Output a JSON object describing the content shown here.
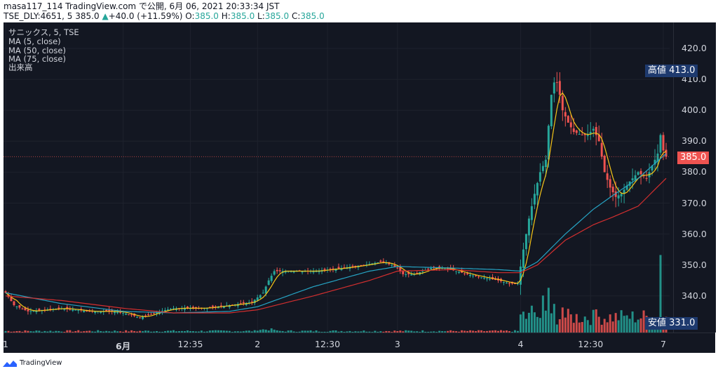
{
  "header": {
    "publisher_line": "masa117_114 TradingView.com で公開, 6月 06, 2021 20:33:34 JST",
    "symbol": "TSE_DLY:4651, 5",
    "last": "385.0",
    "change": "+40.0 (+11.59%)",
    "o_label": "O:",
    "o_value": "385.0",
    "h_label": "H:",
    "h_value": "385.0",
    "l_label": "L:",
    "l_value": "385.0",
    "c_label": "C:",
    "c_value": "385.0"
  },
  "legend": {
    "title": "サニックス, 5, TSE",
    "ma5": "MA (5, close)",
    "ma50": "MA (50, close)",
    "ma75": "MA (75, close)",
    "volume": "出来高"
  },
  "price_tags": {
    "high_label": "高値",
    "high_value": "413.0",
    "low_label": "安値",
    "low_value": "331.0",
    "current_value": "385.0"
  },
  "footer": {
    "brand": "TradingView"
  },
  "colors": {
    "up": "#26a69a",
    "down": "#ef5350",
    "ma5": "#f5c518",
    "ma50": "#26a4c4",
    "ma75": "#d32f2f",
    "background": "#131722",
    "grid": "#1e222d"
  },
  "chart_data": {
    "type": "candlestick",
    "interval": "5",
    "ylim": [
      331,
      425
    ],
    "y_ticks": [
      340,
      350,
      360,
      370,
      380,
      390,
      400,
      410,
      420
    ],
    "y_tick_labels": [
      "340.0",
      "350.0",
      "360.0",
      "370.0",
      "380.0",
      "390.0",
      "400.0",
      "410.0",
      "420.0"
    ],
    "x_ticks": [
      {
        "index": 0,
        "label": "1",
        "bold": false
      },
      {
        "index": 42,
        "label": "6月",
        "bold": true
      },
      {
        "index": 66,
        "label": "12:35",
        "bold": false
      },
      {
        "index": 90,
        "label": "2",
        "bold": false
      },
      {
        "index": 115,
        "label": "12:30",
        "bold": false
      },
      {
        "index": 140,
        "label": "3",
        "bold": false
      },
      {
        "index": 184,
        "label": "4",
        "bold": false
      },
      {
        "index": 209,
        "label": "12:30",
        "bold": false
      },
      {
        "index": 235,
        "label": "7",
        "bold": false
      }
    ],
    "price_keypoints": [
      [
        0,
        341
      ],
      [
        3,
        337
      ],
      [
        8,
        335
      ],
      [
        20,
        336
      ],
      [
        30,
        335
      ],
      [
        40,
        335
      ],
      [
        48,
        333
      ],
      [
        55,
        335
      ],
      [
        60,
        336
      ],
      [
        70,
        336
      ],
      [
        80,
        337
      ],
      [
        88,
        338
      ],
      [
        92,
        341
      ],
      [
        94,
        345
      ],
      [
        96,
        348
      ],
      [
        100,
        348
      ],
      [
        110,
        348
      ],
      [
        120,
        349
      ],
      [
        128,
        350
      ],
      [
        134,
        351
      ],
      [
        138,
        350
      ],
      [
        140,
        349
      ],
      [
        142,
        347
      ],
      [
        146,
        347
      ],
      [
        152,
        349
      ],
      [
        157,
        349
      ],
      [
        165,
        347
      ],
      [
        170,
        346
      ],
      [
        176,
        345
      ],
      [
        180,
        344
      ],
      [
        183,
        344
      ],
      [
        185,
        355
      ],
      [
        187,
        365
      ],
      [
        189,
        373
      ],
      [
        191,
        380
      ],
      [
        193,
        384
      ],
      [
        194,
        395
      ],
      [
        195,
        405
      ],
      [
        196,
        409
      ],
      [
        197,
        409
      ],
      [
        198,
        405
      ],
      [
        199,
        400
      ],
      [
        201,
        396
      ],
      [
        203,
        393
      ],
      [
        206,
        392
      ],
      [
        208,
        392
      ],
      [
        210,
        394
      ],
      [
        212,
        390
      ],
      [
        214,
        380
      ],
      [
        216,
        375
      ],
      [
        218,
        372
      ],
      [
        220,
        373
      ],
      [
        223,
        377
      ],
      [
        226,
        380
      ],
      [
        229,
        378
      ],
      [
        231,
        382
      ],
      [
        233,
        386
      ],
      [
        234,
        392
      ],
      [
        235,
        387
      ],
      [
        236,
        385
      ]
    ],
    "ma50_keypoints": [
      [
        0,
        341
      ],
      [
        20,
        337.5
      ],
      [
        42,
        335
      ],
      [
        60,
        334.5
      ],
      [
        80,
        335
      ],
      [
        90,
        336.5
      ],
      [
        110,
        343
      ],
      [
        130,
        348
      ],
      [
        140,
        349.5
      ],
      [
        160,
        349
      ],
      [
        176,
        348.5
      ],
      [
        184,
        348
      ],
      [
        190,
        351
      ],
      [
        200,
        360
      ],
      [
        210,
        368
      ],
      [
        217,
        372.5
      ],
      [
        226,
        378
      ],
      [
        236,
        386
      ]
    ],
    "ma75_keypoints": [
      [
        0,
        340
      ],
      [
        20,
        338.5
      ],
      [
        42,
        336
      ],
      [
        60,
        334.5
      ],
      [
        80,
        334.5
      ],
      [
        90,
        335.5
      ],
      [
        110,
        340
      ],
      [
        130,
        345
      ],
      [
        140,
        348
      ],
      [
        160,
        348.5
      ],
      [
        176,
        347.5
      ],
      [
        184,
        347.5
      ],
      [
        190,
        350
      ],
      [
        200,
        358
      ],
      [
        210,
        363
      ],
      [
        217,
        365.5
      ],
      [
        226,
        369
      ],
      [
        236,
        378
      ]
    ],
    "volume_spikes": [
      {
        "index": 185,
        "value": 35
      },
      {
        "index": 188,
        "value": 45
      },
      {
        "index": 192,
        "value": 62
      },
      {
        "index": 194,
        "value": 75
      },
      {
        "index": 196,
        "value": 48
      },
      {
        "index": 199,
        "value": 42
      },
      {
        "index": 210,
        "value": 38
      },
      {
        "index": 221,
        "value": 28
      },
      {
        "index": 234,
        "value": 130
      }
    ]
  }
}
